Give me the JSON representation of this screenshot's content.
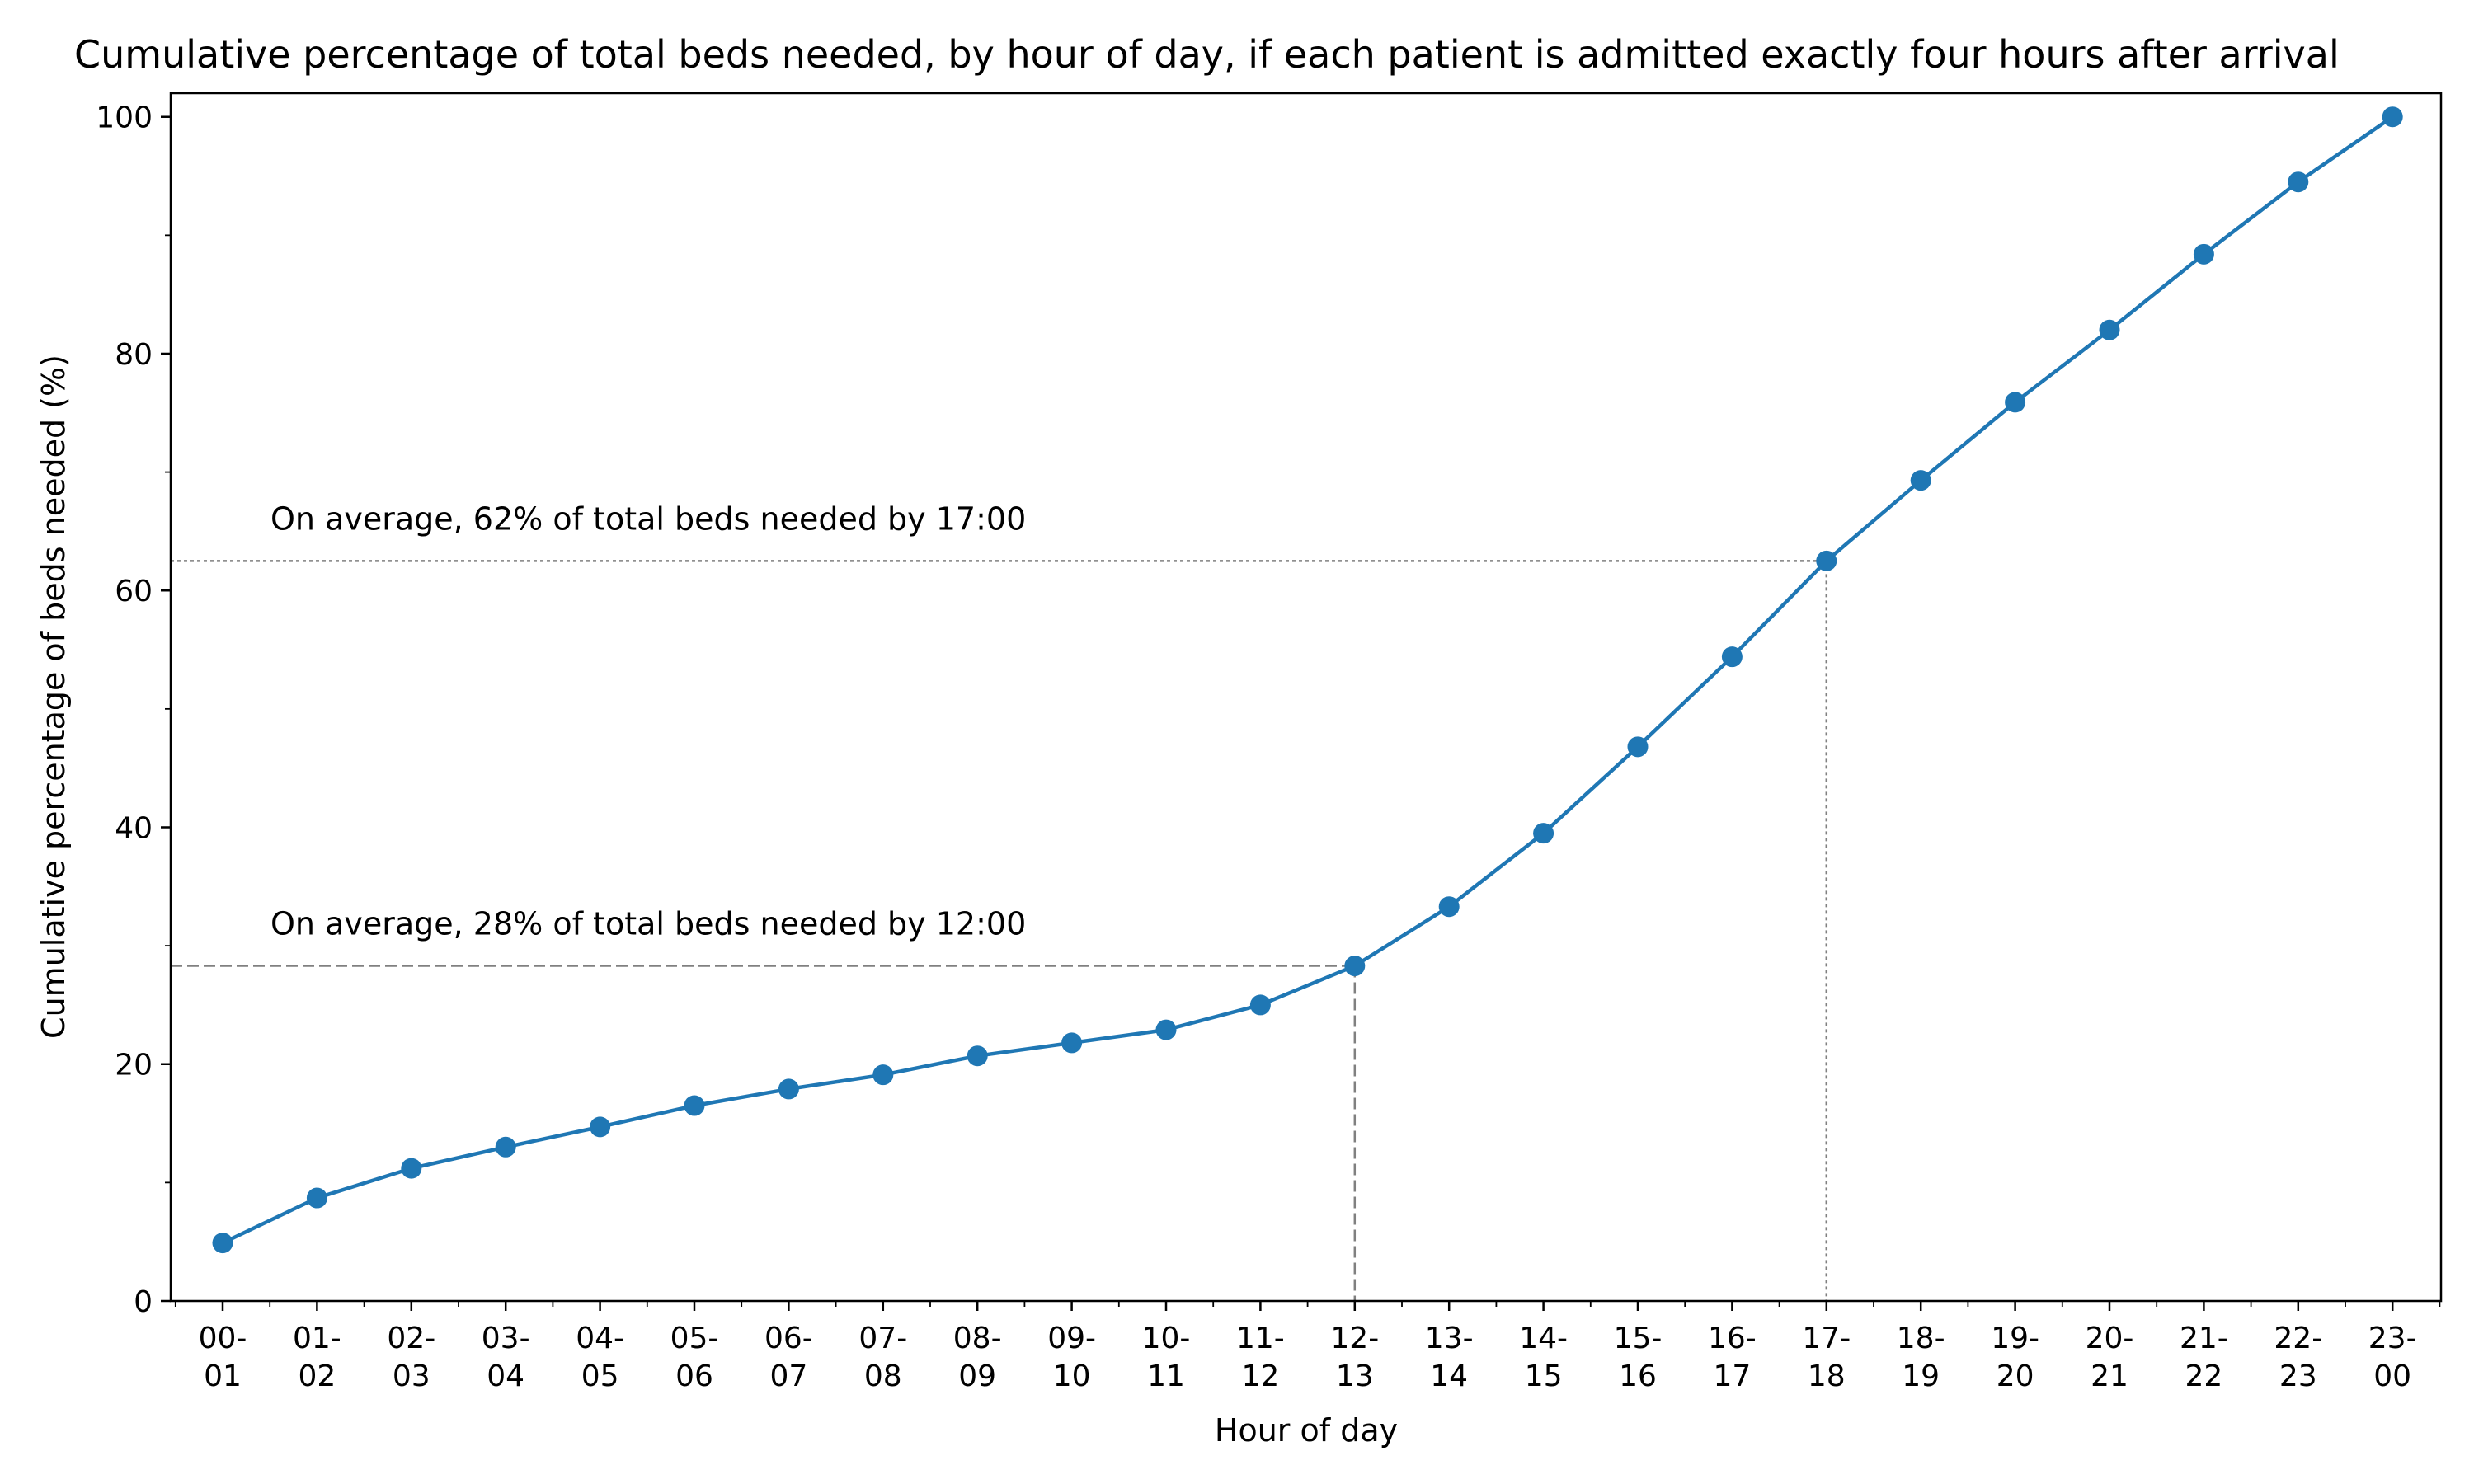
{
  "chart_data": {
    "type": "line",
    "title": "Cumulative percentage of total beds needed, by hour of day, if each patient is admitted exactly four hours after arrival",
    "xlabel": "Hour of day",
    "ylabel": "Cumulative percentage of beds needed (%)",
    "ylim": [
      0,
      102
    ],
    "yticks": [
      0,
      20,
      40,
      60,
      80,
      100
    ],
    "grid": false,
    "legend": "none",
    "colors": {
      "series": "#1f77b4",
      "reference": "#808080",
      "axes": "#000000"
    },
    "categories": [
      [
        "00-",
        "01"
      ],
      [
        "01-",
        "02"
      ],
      [
        "02-",
        "03"
      ],
      [
        "03-",
        "04"
      ],
      [
        "04-",
        "05"
      ],
      [
        "05-",
        "06"
      ],
      [
        "06-",
        "07"
      ],
      [
        "07-",
        "08"
      ],
      [
        "08-",
        "09"
      ],
      [
        "09-",
        "10"
      ],
      [
        "10-",
        "11"
      ],
      [
        "11-",
        "12"
      ],
      [
        "12-",
        "13"
      ],
      [
        "13-",
        "14"
      ],
      [
        "14-",
        "15"
      ],
      [
        "15-",
        "16"
      ],
      [
        "16-",
        "17"
      ],
      [
        "17-",
        "18"
      ],
      [
        "18-",
        "19"
      ],
      [
        "19-",
        "20"
      ],
      [
        "20-",
        "21"
      ],
      [
        "21-",
        "22"
      ],
      [
        "22-",
        "23"
      ],
      [
        "23-",
        "00"
      ]
    ],
    "series": [
      {
        "values": [
          4.9,
          8.7,
          11.2,
          13.0,
          14.7,
          16.5,
          17.9,
          19.1,
          20.7,
          21.8,
          22.9,
          25.0,
          28.3,
          33.3,
          39.5,
          46.8,
          54.4,
          62.5,
          69.3,
          75.9,
          82.0,
          88.4,
          94.5,
          100.0
        ]
      }
    ],
    "annotations": [
      {
        "text": "On average, 28% of total beds needed by 12:00",
        "category_index": 12,
        "value": 28.3,
        "line_style": "dashed"
      },
      {
        "text": "On average, 62% of total beds needed by 17:00",
        "category_index": 17,
        "value": 62.5,
        "line_style": "dotted"
      }
    ]
  }
}
